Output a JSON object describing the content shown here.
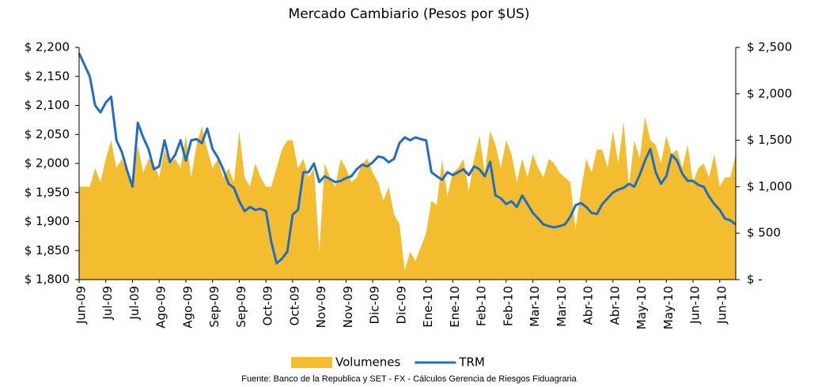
{
  "chart_data": {
    "type": "area-line",
    "title": "Mercado Cambiario (Pesos por $US)",
    "source": "Fuente: Banco de la Republica y SET - FX - Cálculos Gerencia de Riesgos Fiduagraria",
    "categories": [
      "Jun-09",
      null,
      null,
      null,
      null,
      "Jul-09",
      null,
      null,
      null,
      null,
      "Jul-09",
      null,
      null,
      null,
      null,
      "Ago-09",
      null,
      null,
      null,
      null,
      "Ago-09",
      null,
      null,
      null,
      null,
      "Sep-09",
      null,
      null,
      null,
      null,
      "Sep-09",
      null,
      null,
      null,
      null,
      "Oct-09",
      null,
      null,
      null,
      null,
      "Oct-09",
      null,
      null,
      null,
      null,
      "Nov-09",
      null,
      null,
      null,
      null,
      "Nov-09",
      null,
      null,
      null,
      null,
      "Dic-09",
      null,
      null,
      null,
      null,
      "Dic-09",
      null,
      null,
      null,
      null,
      "Ene-10",
      null,
      null,
      null,
      null,
      "Ene-10",
      null,
      null,
      null,
      null,
      "Feb-10",
      null,
      null,
      null,
      null,
      "Feb-10",
      null,
      null,
      null,
      null,
      "Mar-10",
      null,
      null,
      null,
      null,
      "Mar-10",
      null,
      null,
      null,
      null,
      "Abr-10",
      null,
      null,
      null,
      null,
      "Abr-10",
      null,
      null,
      null,
      null,
      "May-10",
      null,
      null,
      null,
      null,
      "May-10",
      null,
      null,
      null,
      null,
      "Jun-10",
      null,
      null,
      null,
      null,
      "Jun-10",
      null,
      null,
      null
    ],
    "series": [
      {
        "name": "Volumenes",
        "type": "area",
        "axis": "y2",
        "color": "#f4bd30",
        "values": [
          1000,
          1000,
          1000,
          1200,
          1050,
          1300,
          1500,
          1200,
          1300,
          1150,
          1050,
          1450,
          1150,
          1300,
          1250,
          1100,
          1400,
          1250,
          1300,
          1200,
          1550,
          1100,
          1450,
          1650,
          1400,
          1200,
          1300,
          1100,
          1200,
          1050,
          1600,
          1100,
          1000,
          1250,
          1100,
          1000,
          1000,
          1200,
          1400,
          1500,
          1500,
          1200,
          1300,
          1100,
          1200,
          300,
          1250,
          1100,
          1000,
          1300,
          1200,
          1050,
          1100,
          1250,
          1300,
          1150,
          1050,
          850,
          1000,
          700,
          600,
          100,
          300,
          200,
          350,
          500,
          850,
          800,
          1300,
          900,
          1150,
          1200,
          1300,
          950,
          1300,
          1550,
          1150,
          1600,
          1450,
          1200,
          1500,
          1350,
          1050,
          1300,
          1100,
          1350,
          1200,
          1100,
          1300,
          1250,
          1150,
          1100,
          1050,
          550,
          950,
          1300,
          1150,
          1400,
          1400,
          1200,
          1600,
          1250,
          1700,
          1000,
          1500,
          1300,
          1750,
          1500,
          1450,
          1250,
          1550,
          1350,
          1400,
          1200,
          1450,
          1050,
          1200,
          1250,
          1100,
          1350,
          1000,
          1100,
          1100,
          1350
        ]
      },
      {
        "name": "TRM",
        "type": "line",
        "color": "#1f6ec4",
        "values": [
          2190,
          2170,
          2150,
          2100,
          2088,
          2105,
          2115,
          2040,
          2020,
          1988,
          1960,
          2070,
          2045,
          2025,
          1990,
          1995,
          2040,
          2002,
          2015,
          2040,
          2005,
          2040,
          2042,
          2035,
          2060,
          2025,
          2010,
          1990,
          1965,
          1958,
          1935,
          1918,
          1925,
          1920,
          1922,
          1918,
          1865,
          1828,
          1836,
          1848,
          1912,
          1920,
          1985,
          1985,
          2000,
          1968,
          1978,
          1973,
          1968,
          1970,
          1975,
          1978,
          1990,
          1998,
          1995,
          2002,
          2012,
          2010,
          2002,
          2008,
          2035,
          2045,
          2040,
          2045,
          2042,
          2040,
          1985,
          1978,
          1972,
          1985,
          1980,
          1985,
          1990,
          1980,
          1995,
          1990,
          1978,
          2003,
          1945,
          1940,
          1930,
          1935,
          1925,
          1945,
          1930,
          1915,
          1905,
          1895,
          1892,
          1890,
          1892,
          1895,
          1908,
          1928,
          1932,
          1925,
          1915,
          1913,
          1930,
          1940,
          1950,
          1955,
          1958,
          1965,
          1960,
          1980,
          2005,
          2025,
          1985,
          1965,
          1978,
          2015,
          2005,
          1982,
          1970,
          1970,
          1963,
          1960,
          1943,
          1930,
          1920,
          1905,
          1902,
          1895
        ]
      }
    ],
    "ylim": [
      1800,
      2200
    ],
    "yticks": [
      {
        "value": 1800,
        "label": "$ 1,800"
      },
      {
        "value": 1850,
        "label": "$ 1,850"
      },
      {
        "value": 1900,
        "label": "$ 1,900"
      },
      {
        "value": 1950,
        "label": "$ 1,950"
      },
      {
        "value": 2000,
        "label": "$ 2,000"
      },
      {
        "value": 2050,
        "label": "$ 2,050"
      },
      {
        "value": 2100,
        "label": "$ 2,100"
      },
      {
        "value": 2150,
        "label": "$ 2,150"
      },
      {
        "value": 2200,
        "label": "$ 2,200"
      }
    ],
    "y2lim": [
      0,
      2500
    ],
    "y2ticks": [
      {
        "value": 0,
        "label": "$ -"
      },
      {
        "value": 500,
        "label": "$ 500"
      },
      {
        "value": 1000,
        "label": "$ 1,000"
      },
      {
        "value": 1500,
        "label": "$ 1,500"
      },
      {
        "value": 2000,
        "label": "$ 2,000"
      },
      {
        "value": 2500,
        "label": "$ 2,500"
      }
    ],
    "legend": "bottom"
  }
}
